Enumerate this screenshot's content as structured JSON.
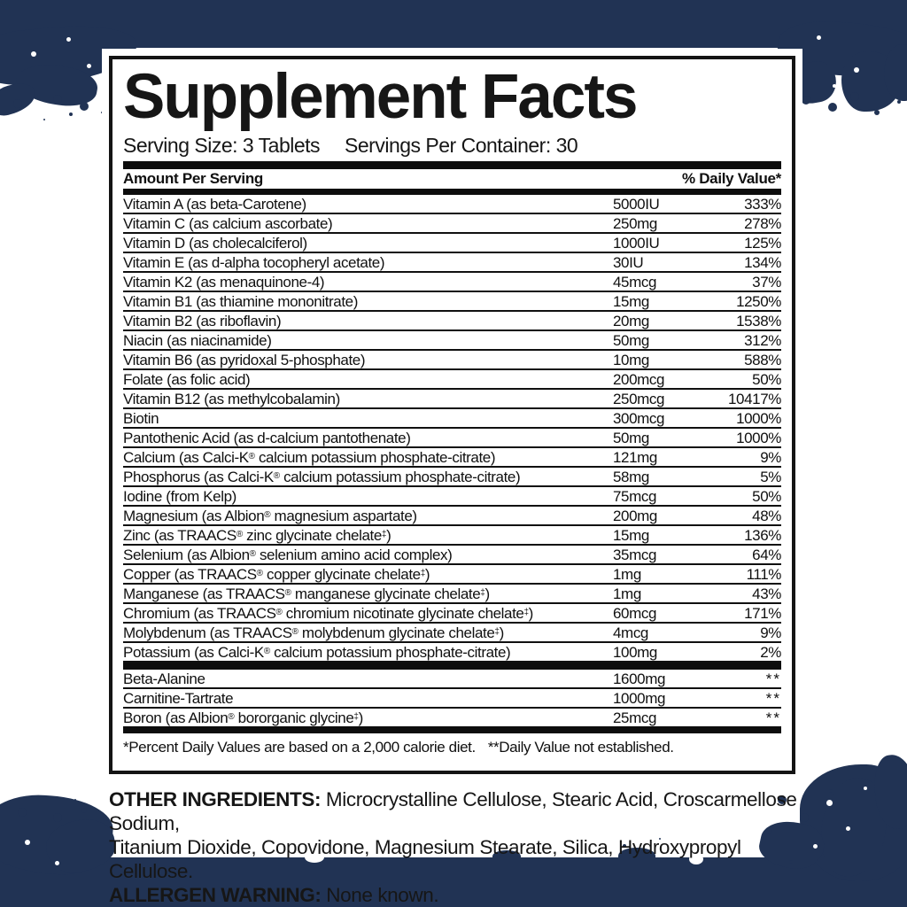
{
  "colors": {
    "navy_background": "#213354",
    "panel_border": "#141414",
    "text": "#101010",
    "bar": "#0d0d0d"
  },
  "panel": {
    "title": "Supplement Facts",
    "serving_size": "Serving Size: 3 Tablets",
    "servings_per_container": "Servings Per Container: 30",
    "column_headers": {
      "left": "Amount Per Serving",
      "right": "% Daily Value*"
    },
    "rows": [
      {
        "name": "Vitamin A (as beta-Carotene)",
        "amount": "5000IU",
        "dv": "333%"
      },
      {
        "name": "Vitamin C (as calcium ascorbate)",
        "amount": "250mg",
        "dv": "278%"
      },
      {
        "name": "Vitamin D (as cholecalciferol)",
        "amount": "1000IU",
        "dv": "125%"
      },
      {
        "name": "Vitamin E (as d-alpha tocopheryl acetate)",
        "amount": "30IU",
        "dv": "134%"
      },
      {
        "name": "Vitamin K2 (as menaquinone-4)",
        "amount": "45mcg",
        "dv": "37%"
      },
      {
        "name": "Vitamin B1 (as thiamine mononitrate)",
        "amount": "15mg",
        "dv": "1250%"
      },
      {
        "name": "Vitamin B2 (as riboflavin)",
        "amount": "20mg",
        "dv": "1538%"
      },
      {
        "name": "Niacin (as niacinamide)",
        "amount": "50mg",
        "dv": "312%"
      },
      {
        "name": "Vitamin B6 (as pyridoxal 5-phosphate)",
        "amount": "10mg",
        "dv": "588%"
      },
      {
        "name": "Folate (as folic acid)",
        "amount": "200mcg",
        "dv": "50%"
      },
      {
        "name": "Vitamin B12 (as methylcobalamin)",
        "amount": "250mcg",
        "dv": "10417%"
      },
      {
        "name": "Biotin",
        "amount": "300mcg",
        "dv": "1000%"
      },
      {
        "name": "Pantothenic Acid (as d-calcium pantothenate)",
        "amount": "50mg",
        "dv": "1000%"
      },
      {
        "name": "Calcium (as Calci-K® calcium potassium phosphate-citrate)",
        "amount": "121mg",
        "dv": "9%"
      },
      {
        "name": "Phosphorus (as Calci-K® calcium potassium phosphate-citrate)",
        "amount": "58mg",
        "dv": "5%"
      },
      {
        "name": "Iodine (from Kelp)",
        "amount": "75mcg",
        "dv": "50%"
      },
      {
        "name": "Magnesium (as Albion® magnesium aspartate)",
        "amount": "200mg",
        "dv": "48%"
      },
      {
        "name": "Zinc (as TRAACS® zinc glycinate chelate‡)",
        "amount": "15mg",
        "dv": "136%"
      },
      {
        "name": "Selenium (as Albion® selenium amino acid complex)",
        "amount": "35mcg",
        "dv": "64%"
      },
      {
        "name": "Copper (as TRAACS® copper glycinate chelate‡)",
        "amount": "1mg",
        "dv": "111%"
      },
      {
        "name": "Manganese (as TRAACS® manganese glycinate chelate‡)",
        "amount": "1mg",
        "dv": "43%"
      },
      {
        "name": "Chromium (as TRAACS® chromium nicotinate glycinate chelate‡)",
        "amount": "60mcg",
        "dv": "171%"
      },
      {
        "name": "Molybdenum (as TRAACS® molybdenum glycinate chelate‡)",
        "amount": "4mcg",
        "dv": "9%"
      },
      {
        "name": "Potassium (as Calci-K® calcium potassium phosphate-citrate)",
        "amount": "100mg",
        "dv": "2%"
      }
    ],
    "extra_rows": [
      {
        "name": "Beta-Alanine",
        "amount": "1600mg",
        "dv": "**"
      },
      {
        "name": "Carnitine-Tartrate",
        "amount": "1000mg",
        "dv": "**"
      },
      {
        "name": "Boron (as Albion® bororganic glycine‡)",
        "amount": "25mcg",
        "dv": "**"
      }
    ],
    "footnote_1": "*Percent Daily Values are based on a 2,000 calorie diet.",
    "footnote_2": "**Daily Value not established."
  },
  "below": {
    "other_ingredients_label": "OTHER INGREDIENTS:",
    "other_ingredients_line1": " Microcrystalline Cellulose, Stearic Acid, Croscarmellose Sodium,",
    "other_ingredients_line2": "Titanium Dioxide, Copovidone, Magnesium Stearate, Silica, Hydroxypropyl Cellulose.",
    "allergen_label": "ALLERGEN WARNING:",
    "allergen_text": " None known."
  }
}
